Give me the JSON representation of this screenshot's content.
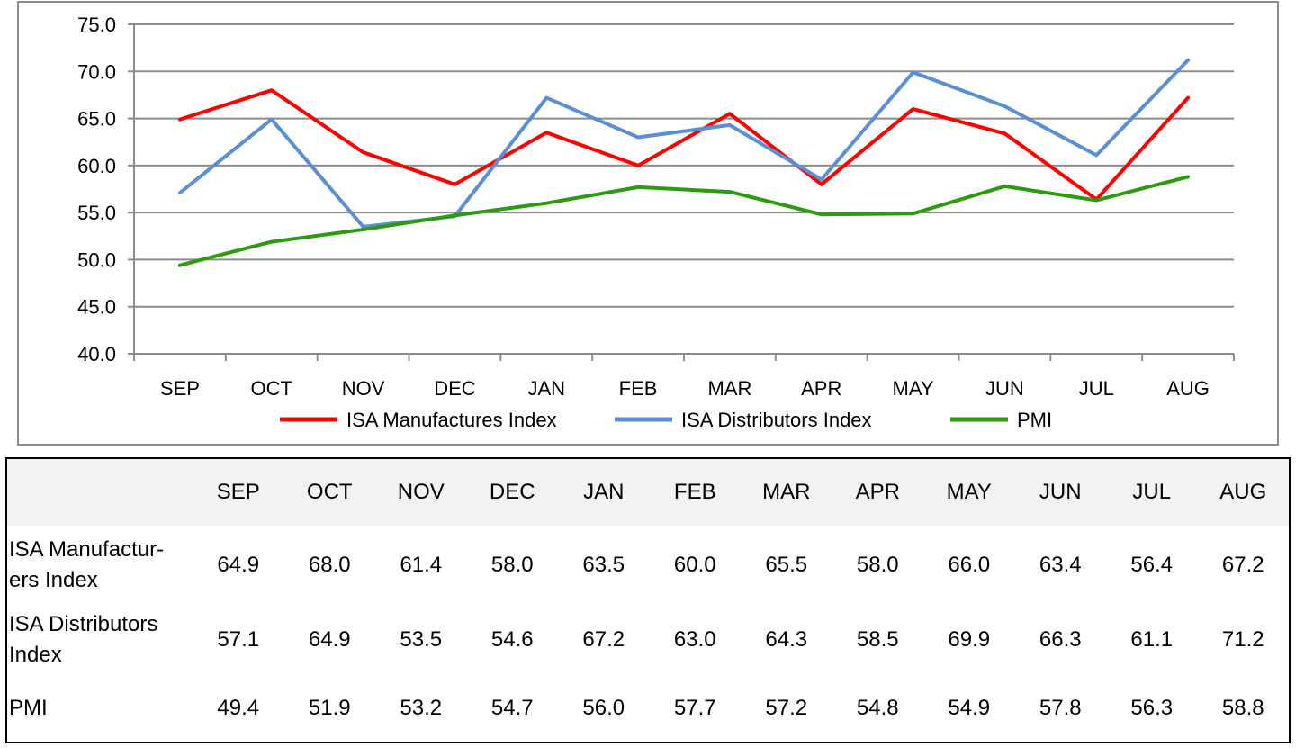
{
  "chart_data": {
    "type": "line",
    "categories": [
      "SEP",
      "OCT",
      "NOV",
      "DEC",
      "JAN",
      "FEB",
      "MAR",
      "APR",
      "MAY",
      "JUN",
      "JUL",
      "AUG"
    ],
    "ylim": [
      40.0,
      75.0
    ],
    "yticks": [
      "75.0",
      "70.0",
      "65.0",
      "60.0",
      "55.0",
      "50.0",
      "45.0",
      "40.0"
    ],
    "grid": true,
    "legend_position": "bottom",
    "series": [
      {
        "name": "ISA Manufactures Index",
        "color": "#ff0000",
        "values": [
          64.9,
          68.0,
          61.4,
          58.0,
          63.5,
          60.0,
          65.5,
          58.0,
          66.0,
          63.4,
          56.4,
          67.2
        ]
      },
      {
        "name": "ISA Distributors Index",
        "color": "#5b8fd4",
        "values": [
          57.1,
          64.9,
          53.5,
          54.6,
          67.2,
          63.0,
          64.3,
          58.5,
          69.9,
          66.3,
          61.1,
          71.2
        ]
      },
      {
        "name": "PMI",
        "color": "#2e9a0f",
        "values": [
          49.4,
          51.9,
          53.2,
          54.7,
          56.0,
          57.7,
          57.2,
          54.8,
          54.9,
          57.8,
          56.3,
          58.8
        ]
      }
    ]
  },
  "table": {
    "headers": [
      "SEP",
      "OCT",
      "NOV",
      "DEC",
      "JAN",
      "FEB",
      "MAR",
      "APR",
      "MAY",
      "JUN",
      "JUL",
      "AUG"
    ],
    "rows": [
      {
        "label_lines": [
          "ISA Manufactur-",
          "ers Index"
        ],
        "values": [
          "64.9",
          "68.0",
          "61.4",
          "58.0",
          "63.5",
          "60.0",
          "65.5",
          "58.0",
          "66.0",
          "63.4",
          "56.4",
          "67.2"
        ]
      },
      {
        "label_lines": [
          "ISA Distributors",
          "Index"
        ],
        "values": [
          "57.1",
          "64.9",
          "53.5",
          "54.6",
          "67.2",
          "63.0",
          "64.3",
          "58.5",
          "69.9",
          "66.3",
          "61.1",
          "71.2"
        ]
      },
      {
        "label_lines": [
          "PMI"
        ],
        "values": [
          "49.4",
          "51.9",
          "53.2",
          "54.7",
          "56.0",
          "57.7",
          "57.2",
          "54.8",
          "54.9",
          "57.8",
          "56.3",
          "58.8"
        ]
      }
    ]
  }
}
